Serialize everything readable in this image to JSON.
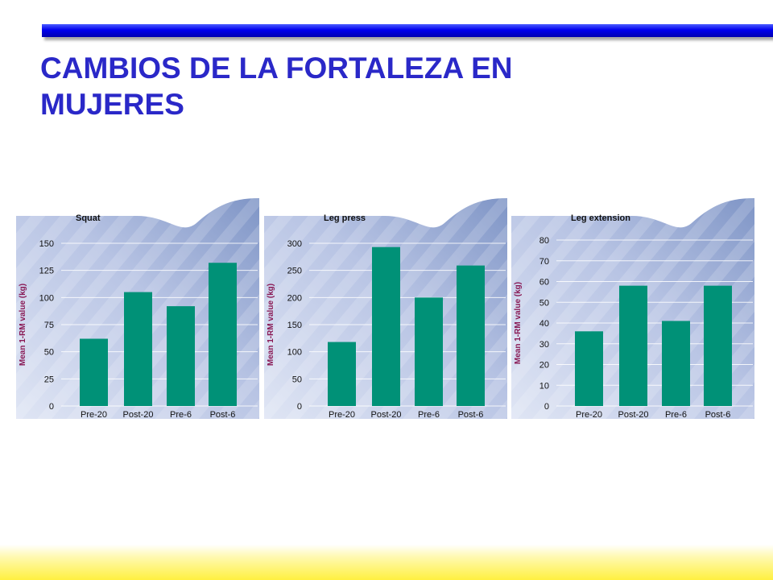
{
  "slide": {
    "title": "CAMBIOS DE LA FORTALEZA EN\nMUJERES"
  },
  "colors": {
    "title": "#2a28c8",
    "bar": "#009177",
    "ylabel": "#8a1a55",
    "panel_light": "#dfe5f4",
    "panel_dark": "#7f95c6",
    "top_bar": "#0000ee",
    "bottom_band": "#fff040"
  },
  "chart_data": [
    {
      "type": "bar",
      "title": "Squat",
      "ylabel": "Mean 1-RM value (kg)",
      "categories": [
        "Pre-20",
        "Post-20",
        "Pre-6",
        "Post-6"
      ],
      "values": [
        62,
        105,
        92,
        132
      ],
      "ylim": [
        0,
        150
      ],
      "yticks": [
        0,
        25,
        50,
        75,
        100,
        125,
        150
      ],
      "grid": true
    },
    {
      "type": "bar",
      "title": "Leg press",
      "ylabel": "Mean 1-RM value (kg)",
      "categories": [
        "Pre-20",
        "Post-20",
        "Pre-6",
        "Post-6"
      ],
      "values": [
        118,
        293,
        200,
        259
      ],
      "ylim": [
        0,
        300
      ],
      "yticks": [
        0,
        50,
        100,
        150,
        200,
        250,
        300
      ],
      "grid": true
    },
    {
      "type": "bar",
      "title": "Leg extension",
      "ylabel": "Mean 1-RM value (kg)",
      "categories": [
        "Pre-20",
        "Post-20",
        "Pre-6",
        "Post-6"
      ],
      "values": [
        36,
        58,
        41,
        58
      ],
      "ylim": [
        0,
        80
      ],
      "yticks": [
        0,
        10,
        20,
        30,
        40,
        50,
        60,
        70,
        80
      ],
      "grid": true
    }
  ]
}
